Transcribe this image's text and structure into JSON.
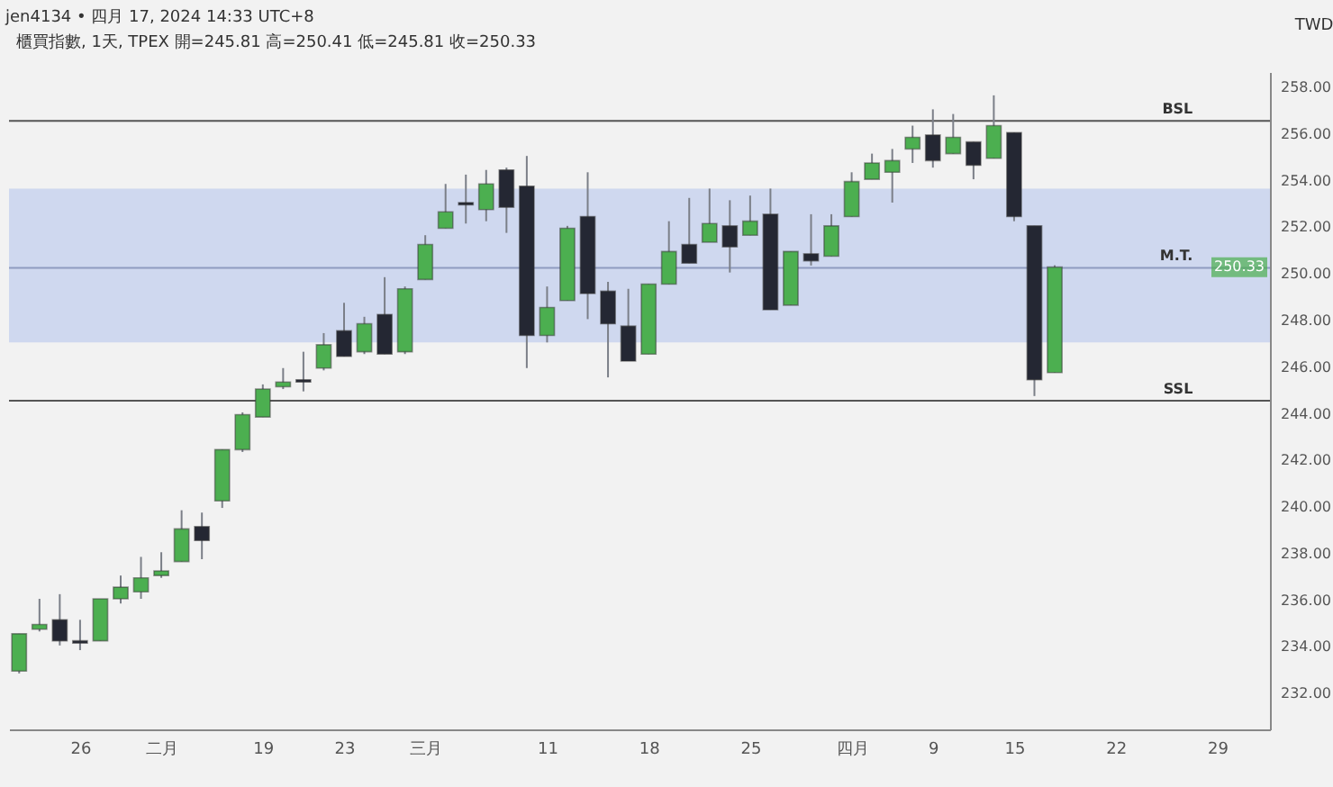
{
  "chart_data": {
    "type": "candlestick",
    "title": "櫃買指數, 1天, TPEX  開=245.81  高=250.41  低=245.81  收=250.33",
    "ylabel": "TWD",
    "categories": [
      null,
      null,
      null,
      "26",
      null,
      null,
      null,
      "二月",
      null,
      null,
      null,
      null,
      "19",
      null,
      null,
      null,
      "23",
      null,
      null,
      null,
      "三月",
      null,
      null,
      null,
      null,
      null,
      "11",
      null,
      null,
      null,
      null,
      "18",
      null,
      null,
      null,
      null,
      "25",
      null,
      null,
      null,
      null,
      "四月",
      null,
      null,
      null,
      "9",
      null,
      null,
      null,
      "15",
      null,
      null,
      null,
      null,
      "22",
      null,
      null,
      null,
      null,
      "29",
      null,
      null
    ],
    "ohlc": [
      [
        233.0,
        234.6,
        232.9,
        234.6
      ],
      [
        234.8,
        236.1,
        234.7,
        235.0
      ],
      [
        235.2,
        236.3,
        234.1,
        234.3
      ],
      [
        234.3,
        235.2,
        233.9,
        234.2
      ],
      [
        234.3,
        236.1,
        234.3,
        236.1
      ],
      [
        236.1,
        237.1,
        235.9,
        236.6
      ],
      [
        236.4,
        237.9,
        236.1,
        237.0
      ],
      [
        237.1,
        238.1,
        237.0,
        237.3
      ],
      [
        237.7,
        239.9,
        237.7,
        239.1
      ],
      [
        239.2,
        239.8,
        237.8,
        238.6
      ],
      [
        240.3,
        242.5,
        240.0,
        242.5
      ],
      [
        242.5,
        244.1,
        242.4,
        244.0
      ],
      [
        243.9,
        245.3,
        243.9,
        245.1
      ],
      [
        245.2,
        246.0,
        245.1,
        245.4
      ],
      [
        245.5,
        246.7,
        245.0,
        245.4
      ],
      [
        246.0,
        247.5,
        245.9,
        247.0
      ],
      [
        247.6,
        248.8,
        246.5,
        246.5
      ],
      [
        246.7,
        248.2,
        246.6,
        247.9
      ],
      [
        248.3,
        249.9,
        246.6,
        246.6
      ],
      [
        246.7,
        249.5,
        246.6,
        249.4
      ],
      [
        249.8,
        251.7,
        249.8,
        251.3
      ],
      [
        252.0,
        253.9,
        252.0,
        252.7
      ],
      [
        253.1,
        254.3,
        252.2,
        253.0
      ],
      [
        252.8,
        254.5,
        252.3,
        253.9
      ],
      [
        254.5,
        254.6,
        251.8,
        252.9
      ],
      [
        253.8,
        255.1,
        246.0,
        247.4
      ],
      [
        247.4,
        249.5,
        247.1,
        248.6
      ],
      [
        248.9,
        252.1,
        248.9,
        252.0
      ],
      [
        252.5,
        254.4,
        248.1,
        249.2
      ],
      [
        249.3,
        249.7,
        245.6,
        247.9
      ],
      [
        247.8,
        249.4,
        246.3,
        246.3
      ],
      [
        246.6,
        249.6,
        246.6,
        249.6
      ],
      [
        249.6,
        252.3,
        249.6,
        251.0
      ],
      [
        251.3,
        253.3,
        250.5,
        250.5
      ],
      [
        251.4,
        253.7,
        251.4,
        252.2
      ],
      [
        252.1,
        253.2,
        250.1,
        251.2
      ],
      [
        251.7,
        253.4,
        251.7,
        252.3
      ],
      [
        252.6,
        253.7,
        248.5,
        248.5
      ],
      [
        248.7,
        251.0,
        248.7,
        251.0
      ],
      [
        250.9,
        252.6,
        250.4,
        250.6
      ],
      [
        250.8,
        252.6,
        250.8,
        252.1
      ],
      [
        252.5,
        254.4,
        252.5,
        254.0
      ],
      [
        254.1,
        255.2,
        254.1,
        254.8
      ],
      [
        254.4,
        255.4,
        253.1,
        254.9
      ],
      [
        255.4,
        256.4,
        254.8,
        255.9
      ],
      [
        256.0,
        257.1,
        254.6,
        254.9
      ],
      [
        255.2,
        256.9,
        255.2,
        255.9
      ],
      [
        255.7,
        255.7,
        254.1,
        254.7
      ],
      [
        255.0,
        257.7,
        255.0,
        256.4
      ],
      [
        256.1,
        256.1,
        252.3,
        252.5
      ],
      [
        252.1,
        252.1,
        244.8,
        245.5
      ],
      [
        245.81,
        250.41,
        245.81,
        250.33
      ],
      null,
      null,
      null,
      null,
      null,
      null,
      null,
      null,
      null,
      null
    ],
    "colors": [
      "#4caf50",
      "#4caf50",
      "#242733",
      "#242733",
      "#4caf50",
      "#4caf50",
      "#4caf50",
      "#4caf50",
      "#4caf50",
      "#242733",
      "#4caf50",
      "#4caf50",
      "#4caf50",
      "#4caf50",
      "#242733",
      "#4caf50",
      "#242733",
      "#4caf50",
      "#242733",
      "#4caf50",
      "#4caf50",
      "#4caf50",
      "#242733",
      "#4caf50",
      "#242733",
      "#242733",
      "#4caf50",
      "#4caf50",
      "#242733",
      "#242733",
      "#242733",
      "#4caf50",
      "#4caf50",
      "#242733",
      "#4caf50",
      "#242733",
      "#4caf50",
      "#242733",
      "#4caf50",
      "#242733",
      "#4caf50",
      "#4caf50",
      "#4caf50",
      "#4caf50",
      "#4caf50",
      "#242733",
      "#4caf50",
      "#242733",
      "#4caf50",
      "#242733",
      "#242733",
      "#4caf50",
      null,
      null,
      null,
      null,
      null,
      null,
      null,
      null,
      null,
      null
    ],
    "ylim": [
      230.5,
      258.7
    ],
    "yticks": [
      {
        "value": 232,
        "label": "232.00"
      },
      {
        "value": 234,
        "label": "234.00"
      },
      {
        "value": 236,
        "label": "236.00"
      },
      {
        "value": 238,
        "label": "238.00"
      },
      {
        "value": 240,
        "label": "240.00"
      },
      {
        "value": 242,
        "label": "242.00"
      },
      {
        "value": 244,
        "label": "244.00"
      },
      {
        "value": 246,
        "label": "246.00"
      },
      {
        "value": 248,
        "label": "248.00"
      },
      {
        "value": 250,
        "label": "250.00"
      },
      {
        "value": 252,
        "label": "252.00"
      },
      {
        "value": 254,
        "label": "254.00"
      },
      {
        "value": 256,
        "label": "256.00"
      },
      {
        "value": 258,
        "label": "258.00"
      }
    ],
    "ref_lines": [
      {
        "axis": "y",
        "value": 256.6,
        "label": "BSL",
        "color": "#555555"
      },
      {
        "axis": "y",
        "value": 244.6,
        "label": "SSL",
        "color": "#555555"
      },
      {
        "axis": "y",
        "value": 250.3,
        "label": "M.T.",
        "color": "#8f9bc0"
      }
    ],
    "bands": [
      {
        "axis": "y",
        "from": 247.1,
        "to": 253.7,
        "color": "#c9d4ee"
      }
    ],
    "annotations": [
      "jen4134 • 四月 17, 2024 14:33 UTC+8",
      {
        "text": "250.33",
        "y": 250.33
      }
    ],
    "grid": false
  }
}
